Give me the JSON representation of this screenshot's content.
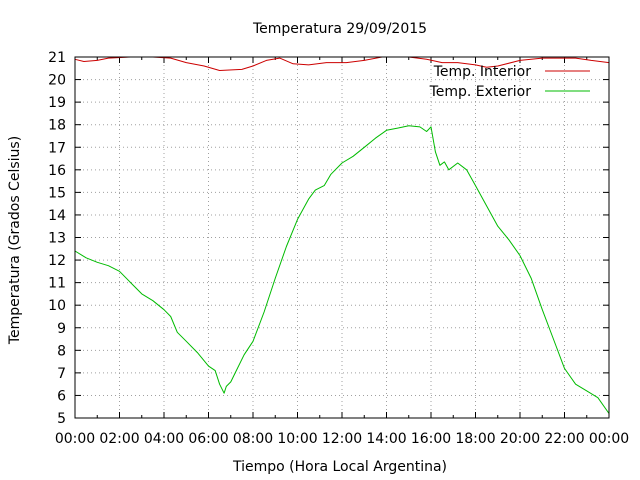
{
  "chart_data": {
    "type": "line",
    "title": "Temperatura 29/09/2015",
    "xlabel": "Tiempo (Hora Local Argentina)",
    "ylabel": "Temperatura (Grados Celsius)",
    "xlim": [
      0,
      24
    ],
    "ylim": [
      5,
      21
    ],
    "grid": true,
    "legend_position": "top-right",
    "x_ticks": [
      "00:00",
      "02:00",
      "04:00",
      "06:00",
      "08:00",
      "10:00",
      "12:00",
      "14:00",
      "16:00",
      "18:00",
      "20:00",
      "22:00",
      "00:00"
    ],
    "y_ticks": [
      "5",
      "6",
      "7",
      "8",
      "9",
      "10",
      "11",
      "12",
      "13",
      "14",
      "15",
      "16",
      "17",
      "18",
      "19",
      "20",
      "21"
    ],
    "series": [
      {
        "name": "Temp. Interior",
        "color": "#cc0000",
        "points": [
          [
            0,
            20.9
          ],
          [
            0.4,
            20.8
          ],
          [
            1.0,
            20.85
          ],
          [
            1.5,
            20.95
          ],
          [
            2.5,
            21.0
          ],
          [
            3.5,
            21.0
          ],
          [
            4.3,
            20.95
          ],
          [
            5.0,
            20.75
          ],
          [
            5.8,
            20.6
          ],
          [
            6.5,
            20.4
          ],
          [
            7.5,
            20.45
          ],
          [
            8.0,
            20.6
          ],
          [
            8.6,
            20.85
          ],
          [
            9.2,
            20.95
          ],
          [
            9.8,
            20.7
          ],
          [
            10.5,
            20.65
          ],
          [
            11.3,
            20.75
          ],
          [
            12.2,
            20.75
          ],
          [
            13.0,
            20.85
          ],
          [
            13.8,
            21.0
          ],
          [
            15.0,
            21.0
          ],
          [
            15.8,
            20.9
          ],
          [
            16.5,
            20.75
          ],
          [
            17.2,
            20.75
          ],
          [
            18.0,
            20.65
          ],
          [
            18.5,
            20.55
          ],
          [
            19.0,
            20.6
          ],
          [
            20.0,
            20.85
          ],
          [
            21.0,
            20.95
          ],
          [
            22.5,
            20.95
          ],
          [
            23.2,
            20.85
          ],
          [
            24,
            20.75
          ]
        ]
      },
      {
        "name": "Temp. Exterior",
        "color": "#00bb00",
        "points": [
          [
            0,
            12.4
          ],
          [
            0.5,
            12.1
          ],
          [
            1.0,
            11.9
          ],
          [
            1.5,
            11.75
          ],
          [
            2.0,
            11.5
          ],
          [
            2.5,
            11.0
          ],
          [
            3.0,
            10.5
          ],
          [
            3.5,
            10.2
          ],
          [
            4.0,
            9.8
          ],
          [
            4.3,
            9.5
          ],
          [
            4.6,
            8.8
          ],
          [
            5.0,
            8.4
          ],
          [
            5.5,
            7.9
          ],
          [
            6.0,
            7.3
          ],
          [
            6.3,
            7.1
          ],
          [
            6.5,
            6.5
          ],
          [
            6.7,
            6.1
          ],
          [
            6.8,
            6.4
          ],
          [
            7.0,
            6.6
          ],
          [
            7.2,
            7.0
          ],
          [
            7.6,
            7.8
          ],
          [
            8.0,
            8.4
          ],
          [
            8.5,
            9.7
          ],
          [
            9.0,
            11.2
          ],
          [
            9.5,
            12.6
          ],
          [
            10.0,
            13.8
          ],
          [
            10.5,
            14.7
          ],
          [
            10.8,
            15.1
          ],
          [
            11.2,
            15.3
          ],
          [
            11.5,
            15.8
          ],
          [
            12.0,
            16.3
          ],
          [
            12.5,
            16.6
          ],
          [
            13.0,
            17.0
          ],
          [
            13.5,
            17.4
          ],
          [
            14.0,
            17.75
          ],
          [
            14.5,
            17.85
          ],
          [
            15.0,
            17.95
          ],
          [
            15.5,
            17.9
          ],
          [
            15.8,
            17.7
          ],
          [
            16.0,
            17.9
          ],
          [
            16.2,
            16.8
          ],
          [
            16.4,
            16.2
          ],
          [
            16.6,
            16.35
          ],
          [
            16.8,
            16.0
          ],
          [
            17.2,
            16.3
          ],
          [
            17.6,
            16.0
          ],
          [
            18.0,
            15.3
          ],
          [
            18.5,
            14.4
          ],
          [
            19.0,
            13.5
          ],
          [
            19.5,
            12.9
          ],
          [
            20.0,
            12.2
          ],
          [
            20.5,
            11.2
          ],
          [
            21.0,
            9.8
          ],
          [
            21.5,
            8.5
          ],
          [
            22.0,
            7.2
          ],
          [
            22.5,
            6.5
          ],
          [
            23.0,
            6.2
          ],
          [
            23.5,
            5.9
          ],
          [
            24,
            5.2
          ]
        ]
      }
    ]
  }
}
